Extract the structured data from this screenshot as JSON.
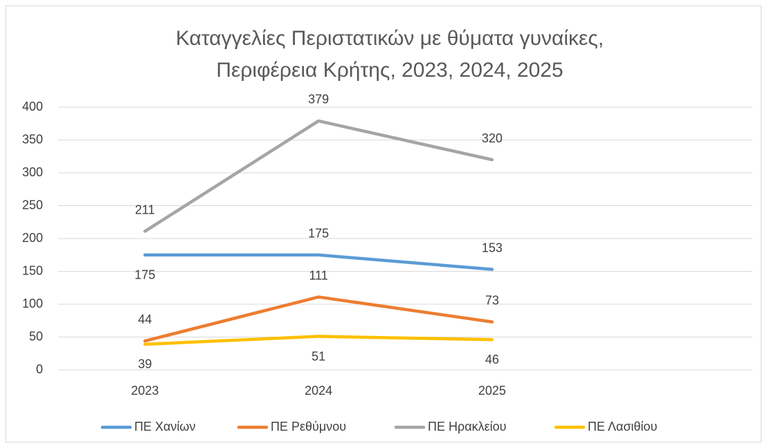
{
  "chart_data": {
    "type": "line",
    "title_lines": [
      "Καταγγελίες Περιστατικών με θύματα γυναίκες,",
      "Περιφέρεια Κρήτης, 2023, 2024, 2025"
    ],
    "categories": [
      "2023",
      "2024",
      "2025",
      null
    ],
    "series": [
      {
        "name": "ΠΕ Χανίων",
        "color": "#5b9bd5",
        "values": [
          175,
          175,
          153,
          null
        ]
      },
      {
        "name": "ΠΕ Ρεθύμνου",
        "color": "#ed7d31",
        "values": [
          44,
          111,
          73,
          null
        ]
      },
      {
        "name": "ΠΕ Ηρακλείου",
        "color": "#a5a5a5",
        "values": [
          211,
          379,
          320,
          null
        ]
      },
      {
        "name": "ΠΕ Λασιθίου",
        "color": "#ffc000",
        "values": [
          39,
          51,
          46,
          null
        ]
      }
    ],
    "ylim": [
      0,
      400
    ],
    "yticks": [
      0,
      50,
      100,
      150,
      200,
      250,
      300,
      350,
      400
    ],
    "grid": true,
    "legend": "bottom"
  }
}
